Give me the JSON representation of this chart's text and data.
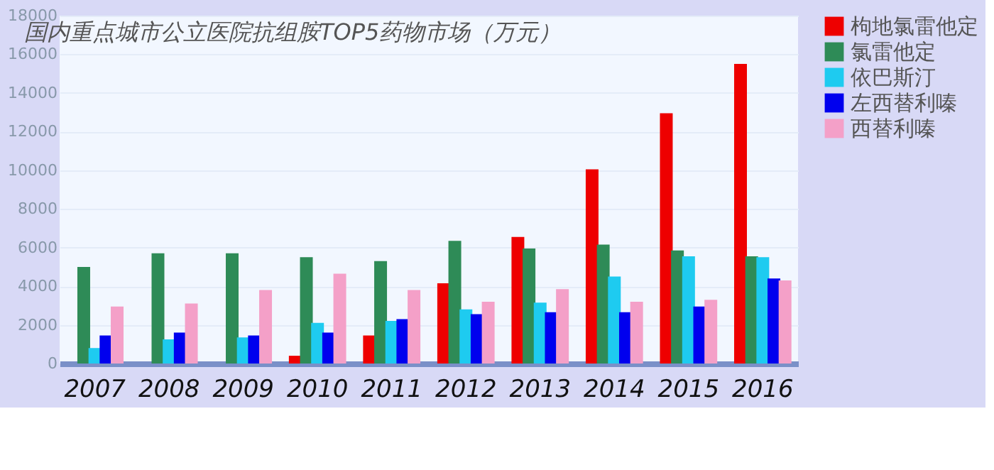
{
  "chart_data": {
    "type": "bar",
    "title": "国内重点城市公立医院抗组胺TOP5药物市场（万元）",
    "categories": [
      "2007",
      "2008",
      "2009",
      "2010",
      "2011",
      "2012",
      "2013",
      "2014",
      "2015",
      "2016"
    ],
    "series": [
      {
        "name": "枸地氯雷他定",
        "color": "#ee0000",
        "values": [
          null,
          null,
          null,
          400,
          1450,
          4150,
          6550,
          10050,
          12950,
          15500
        ]
      },
      {
        "name": "氯雷他定",
        "color": "#2e8b57",
        "values": [
          5000,
          5700,
          5700,
          5500,
          5300,
          6350,
          5950,
          6150,
          5850,
          5550
        ]
      },
      {
        "name": "依巴斯汀",
        "color": "#1ecbf0",
        "values": [
          800,
          1250,
          1350,
          2100,
          2200,
          2800,
          3150,
          4500,
          5550,
          5500
        ]
      },
      {
        "name": "左西替利嗪",
        "color": "#0000ee",
        "values": [
          1450,
          1600,
          1450,
          1600,
          2300,
          2550,
          2650,
          2650,
          2950,
          4400
        ]
      },
      {
        "name": "西替利嗪",
        "color": "#f4a0c8",
        "values": [
          2950,
          3100,
          3800,
          4650,
          3800,
          3200,
          3850,
          3200,
          3300,
          4300
        ]
      }
    ],
    "ylim": [
      0,
      18000
    ],
    "yticks": [
      0,
      2000,
      4000,
      6000,
      8000,
      10000,
      12000,
      14000,
      16000,
      18000
    ],
    "grid": "y",
    "legend": "top right"
  }
}
